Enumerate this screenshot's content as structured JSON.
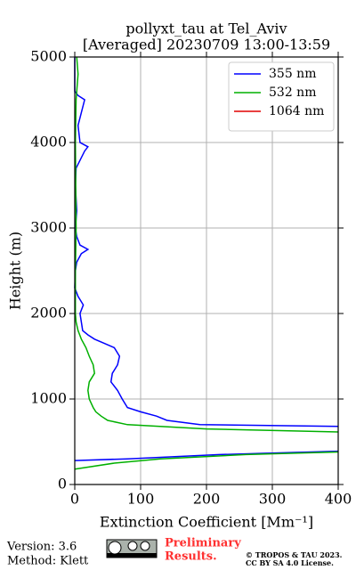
{
  "chart_data": {
    "type": "line",
    "title": "pollyxt_tau at Tel_Aviv",
    "subtitle": "[Averaged] 20230709 13:00-13:59",
    "xlabel": "Extinction Coefficient [Mm⁻¹]",
    "ylabel": "Height (m)",
    "xlim": [
      0,
      400
    ],
    "xticks": [
      0,
      100,
      200,
      300,
      400
    ],
    "ylim": [
      0,
      5000
    ],
    "yticks": [
      0,
      1000,
      2000,
      3000,
      4000,
      5000
    ],
    "grid": true,
    "legend": "upper right",
    "series": [
      {
        "name": "355 nm",
        "color": "#0000ff",
        "y": [
          280,
          300,
          350,
          390,
          null,
          680,
          700,
          750,
          800,
          850,
          900,
          1000,
          1100,
          1200,
          1300,
          1400,
          1500,
          1600,
          1650,
          1700,
          1750,
          1800,
          1900,
          2000,
          2100,
          2200,
          2300,
          2500,
          2600,
          2700,
          2750,
          2800,
          2900,
          3000,
          3200,
          3500,
          3700,
          3900,
          3950,
          4000,
          4200,
          4500,
          4550,
          4600,
          4800,
          5000
        ],
        "values": [
          0,
          80,
          220,
          400,
          null,
          400,
          190,
          140,
          124,
          100,
          80,
          72,
          65,
          55,
          57,
          65,
          68,
          60,
          45,
          30,
          20,
          12,
          10,
          8,
          13,
          5,
          0,
          1,
          3,
          10,
          20,
          8,
          3,
          1,
          3,
          1,
          2,
          15,
          20,
          8,
          5,
          15,
          5,
          0,
          0,
          0
        ]
      },
      {
        "name": "532 nm",
        "color": "#00b000",
        "y": [
          180,
          250,
          300,
          350,
          380,
          null,
          615,
          650,
          700,
          750,
          800,
          850,
          900,
          1000,
          1100,
          1200,
          1300,
          1400,
          1500,
          1600,
          1700,
          1800,
          1900,
          2000,
          2500,
          3000,
          4000,
          4500,
          4800,
          5000
        ],
        "values": [
          0,
          60,
          130,
          260,
          400,
          null,
          400,
          200,
          80,
          50,
          40,
          32,
          28,
          22,
          20,
          22,
          30,
          28,
          22,
          17,
          10,
          5,
          2,
          1,
          1,
          2,
          1,
          2,
          5,
          3
        ]
      },
      {
        "name": "1064 nm",
        "color": "#e00000",
        "y": [],
        "values": []
      }
    ]
  },
  "footer": {
    "version": "Version: 3.6",
    "method": "Method: Klett",
    "notice": [
      "Preliminary",
      "Results."
    ],
    "license": [
      "© TROPOS & TAU 2023.",
      "CC BY SA 4.0 License."
    ]
  }
}
